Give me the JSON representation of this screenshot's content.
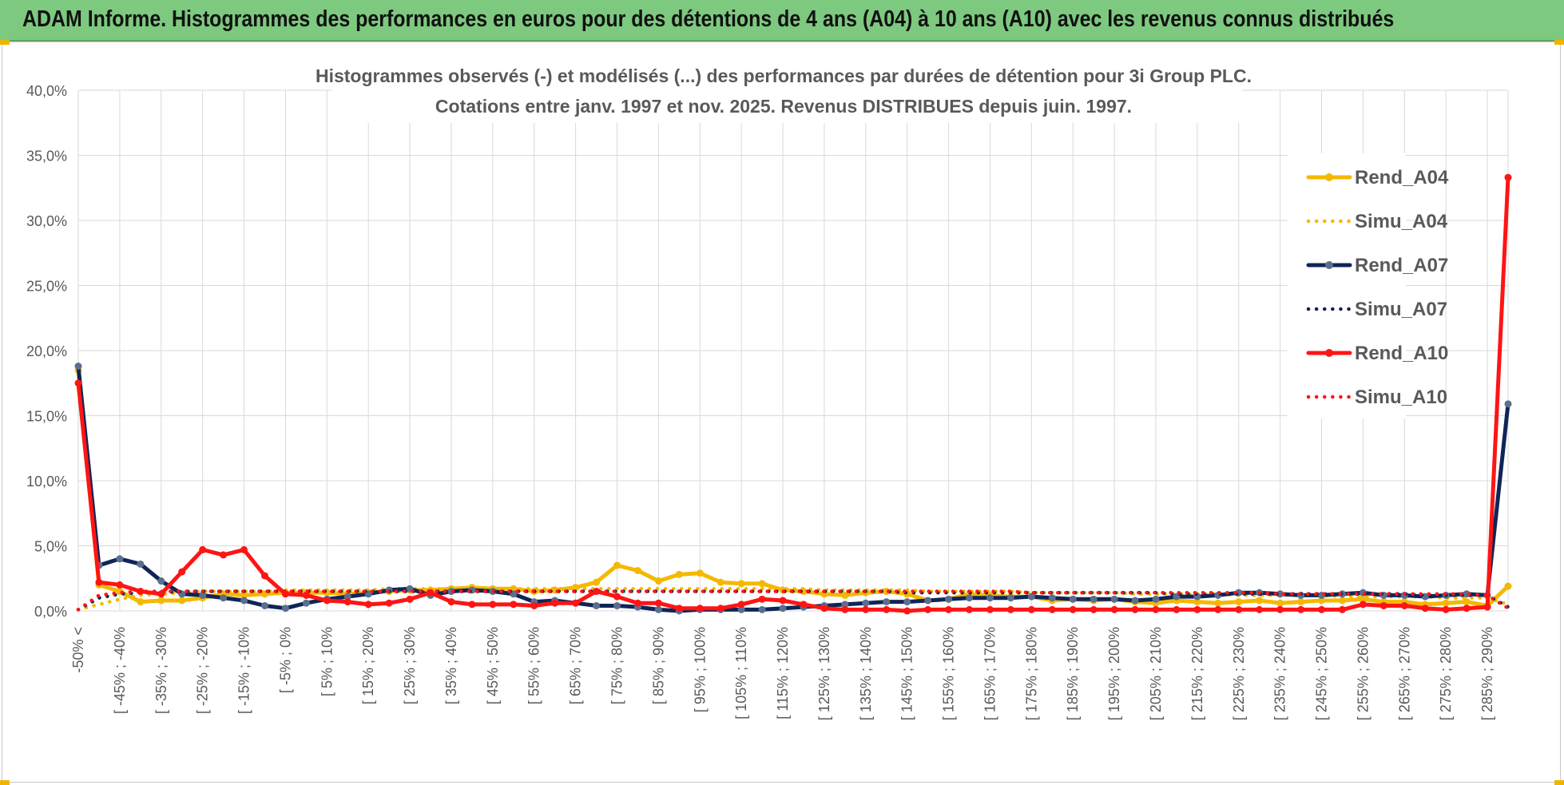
{
  "header": {
    "title": "ADAM Informe. Histogrammes des performances en euros pour des détentions de 4 ans (A04) à 10 ans (A10) avec les revenus connus distribués"
  },
  "colors": {
    "banner": "#7dc97f",
    "A04": "#f5b800",
    "A07": "#0f2557",
    "A07_marker": "#5a6f8f",
    "A10": "#ff1414",
    "grid": "#d9d9d9",
    "text": "#595959"
  },
  "chart_data": {
    "type": "line",
    "title_lines": [
      "Histogrammes observés (-) et modélisés (...) des performances par durées de détention pour 3i Group PLC.",
      "Cotations entre janv. 1997 et nov. 2025. Revenus DISTRIBUES depuis juin. 1997."
    ],
    "ylim": [
      0,
      40
    ],
    "yticks": [
      "0,0%",
      "5,0%",
      "10,0%",
      "15,0%",
      "20,0%",
      "25,0%",
      "30,0%",
      "35,0%",
      "40,0%"
    ],
    "tick_labels": [
      "-50% <",
      "[ -45% ; -40%",
      "[ -35% ; -30%",
      "[ -25% ; -20%",
      "[ -15% ; -10%",
      "[ -5% ; 0%",
      "[ 5% ; 10%",
      "[ 15% ; 20%",
      "[ 25% ; 30%",
      "[ 35% ; 40%",
      "[ 45% ; 50%",
      "[ 55% ; 60%",
      "[ 65% ; 70%",
      "[ 75% ; 80%",
      "[ 85% ; 90%",
      "[ 95% ; 100%",
      "[ 105% ; 110%",
      "[ 115% ; 120%",
      "[ 125% ; 130%",
      "[ 135% ; 140%",
      "[ 145% ; 150%",
      "[ 155% ; 160%",
      "[ 165% ; 170%",
      "[ 175% ; 180%",
      "[ 185% ; 190%",
      "[ 195% ; 200%",
      "[ 205% ; 210%",
      "[ 215% ; 220%",
      "[ 225% ; 230%",
      "[ 235% ; 240%",
      "[ 245% ; 250%",
      "[ 255% ; 260%",
      "[ 265% ; 270%",
      "[ 275% ; 280%",
      "[ 285% ; 290%"
    ],
    "n_points": 70,
    "series": [
      {
        "name": "Rend_A04",
        "style": "solid",
        "color": "#f5b800",
        "values": [
          18.5,
          2.0,
          1.5,
          0.7,
          0.8,
          0.8,
          1.0,
          1.3,
          1.2,
          1.3,
          1.4,
          1.4,
          1.4,
          1.3,
          1.4,
          1.5,
          1.6,
          1.6,
          1.7,
          1.8,
          1.7,
          1.7,
          1.5,
          1.6,
          1.8,
          2.2,
          3.5,
          3.1,
          2.3,
          2.8,
          2.9,
          2.2,
          2.1,
          2.1,
          1.6,
          1.5,
          1.3,
          1.2,
          1.4,
          1.5,
          1.3,
          0.8,
          0.9,
          1.3,
          1.2,
          1.1,
          1.1,
          0.8,
          0.9,
          0.8,
          0.9,
          0.7,
          0.6,
          0.8,
          0.7,
          0.6,
          0.7,
          0.8,
          0.6,
          0.7,
          0.8,
          0.8,
          0.9,
          0.7,
          0.7,
          0.5,
          0.6,
          0.7,
          0.4,
          1.9
        ]
      },
      {
        "name": "Simu_A04",
        "style": "dotted",
        "color": "#f5b800",
        "values": [
          0.1,
          0.5,
          0.9,
          1.2,
          1.3,
          1.4,
          1.5,
          1.5,
          1.5,
          1.5,
          1.6,
          1.6,
          1.6,
          1.6,
          1.6,
          1.7,
          1.7,
          1.7,
          1.7,
          1.7,
          1.7,
          1.7,
          1.7,
          1.7,
          1.7,
          1.7,
          1.7,
          1.7,
          1.7,
          1.7,
          1.7,
          1.7,
          1.7,
          1.7,
          1.7,
          1.7,
          1.6,
          1.6,
          1.6,
          1.6,
          1.6,
          1.5,
          1.5,
          1.5,
          1.5,
          1.5,
          1.4,
          1.4,
          1.4,
          1.4,
          1.4,
          1.3,
          1.3,
          1.3,
          1.3,
          1.3,
          1.2,
          1.2,
          1.2,
          1.2,
          1.2,
          1.1,
          1.1,
          1.1,
          1.1,
          1.1,
          1.0,
          1.0,
          1.0,
          0.5
        ]
      },
      {
        "name": "Rend_A07",
        "style": "solid",
        "color": "#0f2557",
        "values": [
          18.8,
          3.5,
          4.0,
          3.6,
          2.3,
          1.3,
          1.2,
          1.0,
          0.8,
          0.4,
          0.2,
          0.6,
          0.9,
          1.1,
          1.3,
          1.6,
          1.7,
          1.2,
          1.5,
          1.6,
          1.5,
          1.3,
          0.7,
          0.8,
          0.6,
          0.4,
          0.4,
          0.3,
          0.1,
          0.0,
          0.1,
          0.1,
          0.1,
          0.1,
          0.2,
          0.3,
          0.4,
          0.5,
          0.6,
          0.7,
          0.7,
          0.8,
          0.9,
          1.0,
          1.0,
          1.0,
          1.1,
          1.0,
          0.9,
          0.9,
          0.9,
          0.8,
          0.9,
          1.1,
          1.1,
          1.2,
          1.4,
          1.4,
          1.3,
          1.2,
          1.2,
          1.3,
          1.4,
          1.2,
          1.2,
          1.1,
          1.2,
          1.3,
          1.2,
          15.9
        ]
      },
      {
        "name": "Simu_A07",
        "style": "dotted",
        "color": "#0f2557",
        "values": [
          0.1,
          1.0,
          1.3,
          1.4,
          1.4,
          1.5,
          1.5,
          1.5,
          1.5,
          1.5,
          1.5,
          1.5,
          1.5,
          1.5,
          1.5,
          1.5,
          1.5,
          1.5,
          1.5,
          1.5,
          1.5,
          1.5,
          1.5,
          1.5,
          1.5,
          1.5,
          1.5,
          1.5,
          1.5,
          1.5,
          1.5,
          1.5,
          1.5,
          1.5,
          1.5,
          1.5,
          1.5,
          1.5,
          1.5,
          1.5,
          1.4,
          1.4,
          1.4,
          1.4,
          1.4,
          1.4,
          1.4,
          1.4,
          1.4,
          1.4,
          1.4,
          1.4,
          1.4,
          1.3,
          1.3,
          1.3,
          1.3,
          1.3,
          1.3,
          1.3,
          1.3,
          1.3,
          1.3,
          1.3,
          1.3,
          1.2,
          1.2,
          1.2,
          1.2,
          0.3
        ]
      },
      {
        "name": "Rend_A10",
        "style": "solid",
        "color": "#ff1414",
        "values": [
          17.5,
          2.2,
          2.0,
          1.5,
          1.3,
          3.0,
          4.7,
          4.3,
          4.7,
          2.7,
          1.3,
          1.2,
          0.8,
          0.7,
          0.5,
          0.6,
          0.9,
          1.4,
          0.7,
          0.5,
          0.5,
          0.5,
          0.4,
          0.6,
          0.6,
          1.5,
          1.1,
          0.6,
          0.6,
          0.2,
          0.2,
          0.2,
          0.5,
          0.9,
          0.8,
          0.5,
          0.2,
          0.1,
          0.1,
          0.1,
          0.0,
          0.1,
          0.1,
          0.1,
          0.1,
          0.1,
          0.1,
          0.1,
          0.1,
          0.1,
          0.1,
          0.1,
          0.1,
          0.1,
          0.1,
          0.1,
          0.1,
          0.1,
          0.1,
          0.1,
          0.1,
          0.1,
          0.5,
          0.4,
          0.4,
          0.2,
          0.1,
          0.2,
          0.3,
          33.3
        ]
      },
      {
        "name": "Simu_A10",
        "style": "dotted",
        "color": "#ff1414",
        "values": [
          0.1,
          1.2,
          1.4,
          1.5,
          1.5,
          1.5,
          1.5,
          1.5,
          1.5,
          1.5,
          1.5,
          1.5,
          1.5,
          1.5,
          1.5,
          1.5,
          1.5,
          1.5,
          1.5,
          1.5,
          1.5,
          1.5,
          1.5,
          1.5,
          1.5,
          1.5,
          1.5,
          1.5,
          1.5,
          1.5,
          1.5,
          1.5,
          1.5,
          1.5,
          1.5,
          1.5,
          1.5,
          1.5,
          1.5,
          1.5,
          1.5,
          1.5,
          1.5,
          1.5,
          1.5,
          1.5,
          1.4,
          1.4,
          1.4,
          1.4,
          1.4,
          1.4,
          1.4,
          1.4,
          1.4,
          1.4,
          1.4,
          1.4,
          1.3,
          1.3,
          1.3,
          1.3,
          1.3,
          1.3,
          1.3,
          1.3,
          1.3,
          1.3,
          1.2,
          0.2
        ]
      }
    ],
    "legend_position": "right"
  }
}
